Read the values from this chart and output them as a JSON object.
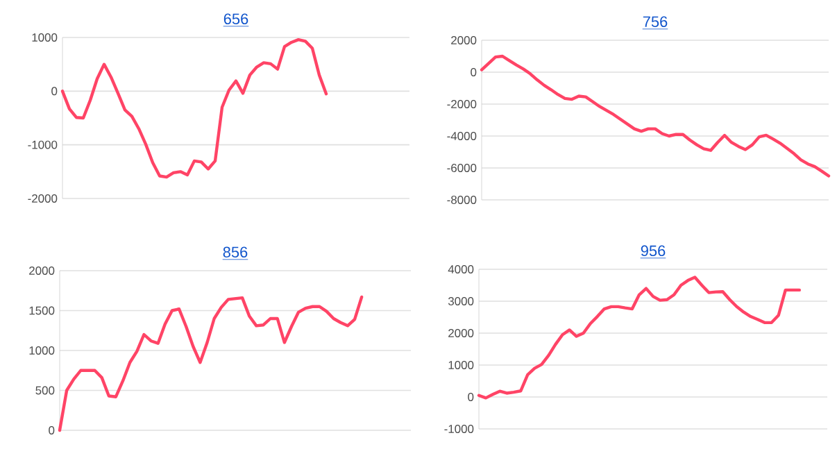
{
  "chart_data": [
    {
      "type": "line",
      "title": "656",
      "categories": [
        null,
        null,
        null,
        null,
        null,
        null,
        null,
        null,
        null,
        null,
        null,
        null,
        null,
        null,
        null,
        null,
        null,
        null,
        null,
        null,
        null,
        null,
        null,
        null,
        null,
        null,
        null,
        null,
        null,
        null,
        null,
        null,
        null,
        null,
        null,
        null,
        null,
        null,
        null,
        null,
        null,
        null,
        null,
        null,
        null,
        null,
        null,
        null,
        null,
        null,
        null
      ],
      "series": [
        {
          "color": "#ff4466",
          "values": [
            0,
            -330,
            -490,
            -500,
            -170,
            230,
            500,
            260,
            -40,
            -350,
            -470,
            -700,
            -990,
            -1330,
            -1580,
            -1600,
            -1520,
            -1500,
            -1560,
            -1300,
            -1320,
            -1450,
            -1300,
            -300,
            20,
            190,
            -40,
            300,
            450,
            530,
            510,
            410,
            830,
            910,
            960,
            930,
            800,
            300,
            -50,
            null,
            null,
            null,
            null,
            null,
            null,
            null,
            null,
            null,
            null,
            null,
            null
          ]
        }
      ],
      "ylim": [
        -2000,
        1000
      ],
      "yticks": [
        -2000,
        -1000,
        0,
        1000
      ],
      "grid": "y",
      "tick_labels": "y"
    },
    {
      "type": "line",
      "title": "756",
      "categories": [
        null,
        null,
        null,
        null,
        null,
        null,
        null,
        null,
        null,
        null,
        null,
        null,
        null,
        null,
        null,
        null,
        null,
        null,
        null,
        null,
        null,
        null,
        null,
        null,
        null,
        null,
        null,
        null,
        null,
        null,
        null,
        null,
        null,
        null,
        null,
        null,
        null,
        null,
        null,
        null,
        null,
        null,
        null,
        null,
        null,
        null,
        null,
        null,
        null,
        null,
        null
      ],
      "series": [
        {
          "color": "#ff4466",
          "values": [
            150,
            550,
            950,
            1000,
            720,
            450,
            200,
            -100,
            -480,
            -820,
            -1100,
            -1400,
            -1650,
            -1700,
            -1500,
            -1550,
            -1850,
            -2150,
            -2400,
            -2650,
            -2950,
            -3250,
            -3550,
            -3700,
            -3550,
            -3550,
            -3850,
            -4000,
            -3900,
            -3900,
            -4250,
            -4550,
            -4800,
            -4900,
            -4400,
            -3960,
            -4400,
            -4650,
            -4850,
            -4550,
            -4050,
            -3950,
            -4190,
            -4450,
            -4770,
            -5100,
            -5490,
            -5750,
            -5920,
            -6200,
            -6500
          ]
        }
      ],
      "ylim": [
        -8000,
        2000
      ],
      "yticks": [
        -8000,
        -6000,
        -4000,
        -2000,
        0,
        2000
      ],
      "grid": "y",
      "tick_labels": "y"
    },
    {
      "type": "line",
      "title": "856",
      "categories": [
        null,
        null,
        null,
        null,
        null,
        null,
        null,
        null,
        null,
        null,
        null,
        null,
        null,
        null,
        null,
        null,
        null,
        null,
        null,
        null,
        null,
        null,
        null,
        null,
        null,
        null,
        null,
        null,
        null,
        null,
        null,
        null,
        null,
        null,
        null,
        null,
        null,
        null,
        null,
        null,
        null,
        null,
        null,
        null,
        null,
        null,
        null,
        null,
        null,
        null,
        null
      ],
      "series": [
        {
          "color": "#ff4466",
          "values": [
            0,
            500,
            640,
            750,
            750,
            750,
            660,
            430,
            420,
            620,
            850,
            990,
            1200,
            1120,
            1090,
            1330,
            1500,
            1520,
            1300,
            1050,
            850,
            1100,
            1400,
            1540,
            1640,
            1650,
            1660,
            1430,
            1310,
            1320,
            1400,
            1400,
            1100,
            1300,
            1480,
            1530,
            1550,
            1550,
            1490,
            1400,
            1350,
            1310,
            1390,
            1670,
            null,
            null,
            null,
            null,
            null,
            null,
            null
          ]
        }
      ],
      "ylim": [
        0,
        2000
      ],
      "yticks": [
        0,
        500,
        1000,
        1500,
        2000
      ],
      "grid": "y",
      "tick_labels": "y"
    },
    {
      "type": "line",
      "title": "956",
      "categories": [
        null,
        null,
        null,
        null,
        null,
        null,
        null,
        null,
        null,
        null,
        null,
        null,
        null,
        null,
        null,
        null,
        null,
        null,
        null,
        null,
        null,
        null,
        null,
        null,
        null,
        null,
        null,
        null,
        null,
        null,
        null,
        null,
        null,
        null,
        null,
        null,
        null,
        null,
        null,
        null,
        null,
        null,
        null,
        null,
        null,
        null,
        null,
        null,
        null,
        null,
        null
      ],
      "series": [
        {
          "color": "#ff4466",
          "values": [
            50,
            -30,
            80,
            180,
            120,
            150,
            190,
            700,
            900,
            1020,
            1300,
            1650,
            1950,
            2100,
            1900,
            2000,
            2300,
            2520,
            2760,
            2830,
            2830,
            2790,
            2760,
            3200,
            3400,
            3150,
            3030,
            3050,
            3200,
            3500,
            3650,
            3750,
            3500,
            3270,
            3290,
            3300,
            3050,
            2830,
            2660,
            2520,
            2430,
            2330,
            2330,
            2560,
            3350,
            3350,
            3350,
            null,
            null,
            null,
            null
          ]
        }
      ],
      "ylim": [
        -1000,
        4000
      ],
      "yticks": [
        -1000,
        0,
        1000,
        2000,
        3000,
        4000
      ],
      "grid": "y",
      "tick_labels": "y"
    }
  ]
}
